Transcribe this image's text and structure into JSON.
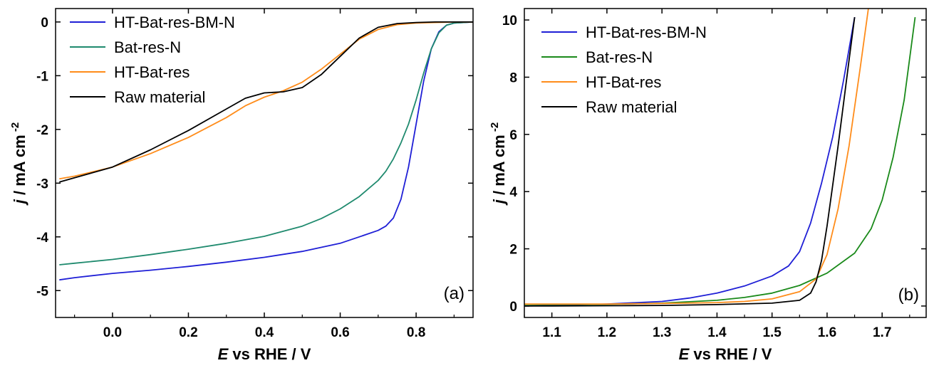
{
  "chart_data": [
    {
      "type": "line",
      "panel_label": "(a)",
      "xlabel_italic": "E",
      "xlabel_rest": " vs RHE / V",
      "ylabel_italic": "j",
      "ylabel_rest": " / mA cm",
      "ylabel_sup": "-2",
      "xlim": [
        -0.15,
        0.95
      ],
      "ylim": [
        -5.5,
        0.25
      ],
      "xticks": [
        0.0,
        0.2,
        0.4,
        0.6,
        0.8
      ],
      "xtick_labels": [
        "0.0",
        "0.2",
        "0.4",
        "0.6",
        "0.8"
      ],
      "yticks": [
        0,
        -1,
        -2,
        -3,
        -4,
        -5
      ],
      "ytick_labels": [
        "0",
        "-1",
        "-2",
        "-3",
        "-4",
        "-5"
      ],
      "legend_position": "top-left",
      "series": [
        {
          "name": "HT-Bat-res-BM-N",
          "color": "#1f1fd6",
          "x": [
            -0.14,
            -0.1,
            0.0,
            0.1,
            0.2,
            0.3,
            0.4,
            0.5,
            0.6,
            0.65,
            0.7,
            0.72,
            0.74,
            0.76,
            0.78,
            0.8,
            0.82,
            0.84,
            0.86,
            0.88,
            0.9,
            0.95
          ],
          "y": [
            -4.8,
            -4.76,
            -4.68,
            -4.62,
            -4.55,
            -4.47,
            -4.38,
            -4.27,
            -4.12,
            -4.0,
            -3.88,
            -3.8,
            -3.65,
            -3.3,
            -2.7,
            -1.9,
            -1.1,
            -0.5,
            -0.18,
            -0.06,
            -0.02,
            0.0
          ]
        },
        {
          "name": "Bat-res-N",
          "color": "#1f8a6e",
          "x": [
            -0.14,
            -0.1,
            0.0,
            0.1,
            0.2,
            0.3,
            0.4,
            0.5,
            0.55,
            0.6,
            0.65,
            0.7,
            0.72,
            0.74,
            0.76,
            0.78,
            0.8,
            0.82,
            0.84,
            0.86,
            0.88,
            0.9,
            0.95
          ],
          "y": [
            -4.52,
            -4.49,
            -4.42,
            -4.33,
            -4.23,
            -4.12,
            -3.99,
            -3.8,
            -3.66,
            -3.48,
            -3.25,
            -2.95,
            -2.78,
            -2.55,
            -2.25,
            -1.9,
            -1.45,
            -0.95,
            -0.5,
            -0.2,
            -0.06,
            -0.02,
            0.0
          ]
        },
        {
          "name": "HT-Bat-res",
          "color": "#ff8c1a",
          "x": [
            -0.14,
            -0.1,
            0.0,
            0.1,
            0.2,
            0.3,
            0.35,
            0.4,
            0.45,
            0.5,
            0.55,
            0.6,
            0.65,
            0.7,
            0.75,
            0.8,
            0.85,
            0.9,
            0.95
          ],
          "y": [
            -2.92,
            -2.87,
            -2.7,
            -2.45,
            -2.15,
            -1.78,
            -1.56,
            -1.4,
            -1.28,
            -1.12,
            -0.88,
            -0.6,
            -0.32,
            -0.14,
            -0.05,
            -0.02,
            -0.01,
            0.0,
            0.0
          ]
        },
        {
          "name": "Raw material",
          "color": "#000000",
          "x": [
            -0.14,
            -0.1,
            0.0,
            0.1,
            0.2,
            0.3,
            0.35,
            0.4,
            0.45,
            0.5,
            0.55,
            0.6,
            0.65,
            0.7,
            0.75,
            0.8,
            0.85,
            0.9,
            0.95
          ],
          "y": [
            -2.98,
            -2.9,
            -2.7,
            -2.38,
            -2.02,
            -1.62,
            -1.42,
            -1.32,
            -1.3,
            -1.22,
            -0.98,
            -0.64,
            -0.3,
            -0.1,
            -0.03,
            -0.01,
            0.0,
            0.0,
            0.0
          ]
        }
      ]
    },
    {
      "type": "line",
      "panel_label": "(b)",
      "xlabel_italic": "E",
      "xlabel_rest": " vs RHE / V",
      "ylabel_italic": "j",
      "ylabel_rest": " / mA cm",
      "ylabel_sup": "-2",
      "xlim": [
        1.05,
        1.78
      ],
      "ylim": [
        -0.4,
        10.4
      ],
      "xticks": [
        1.1,
        1.2,
        1.3,
        1.4,
        1.5,
        1.6,
        1.7
      ],
      "xtick_labels": [
        "1.1",
        "1.2",
        "1.3",
        "1.4",
        "1.5",
        "1.6",
        "1.7"
      ],
      "yticks": [
        0,
        2,
        4,
        6,
        8,
        10
      ],
      "ytick_labels": [
        "0",
        "2",
        "4",
        "6",
        "8",
        "10"
      ],
      "legend_position": "top-left",
      "series": [
        {
          "name": "HT-Bat-res-BM-N",
          "color": "#1f1fd6",
          "x": [
            1.05,
            1.1,
            1.2,
            1.3,
            1.35,
            1.4,
            1.45,
            1.5,
            1.53,
            1.55,
            1.57,
            1.59,
            1.61,
            1.63,
            1.65
          ],
          "y": [
            0.0,
            0.02,
            0.07,
            0.16,
            0.28,
            0.45,
            0.7,
            1.05,
            1.4,
            1.9,
            2.9,
            4.3,
            5.9,
            7.9,
            10.1
          ]
        },
        {
          "name": "Bat-res-N",
          "color": "#1a8a1a",
          "x": [
            1.05,
            1.1,
            1.2,
            1.3,
            1.4,
            1.45,
            1.5,
            1.55,
            1.6,
            1.65,
            1.68,
            1.7,
            1.72,
            1.74,
            1.76
          ],
          "y": [
            0.05,
            0.05,
            0.06,
            0.1,
            0.2,
            0.3,
            0.45,
            0.72,
            1.15,
            1.85,
            2.7,
            3.7,
            5.2,
            7.2,
            10.1
          ]
        },
        {
          "name": "HT-Bat-res",
          "color": "#ff8c1a",
          "x": [
            1.05,
            1.1,
            1.2,
            1.3,
            1.4,
            1.45,
            1.5,
            1.55,
            1.58,
            1.6,
            1.62,
            1.64,
            1.66,
            1.675
          ],
          "y": [
            0.07,
            0.07,
            0.07,
            0.09,
            0.12,
            0.16,
            0.25,
            0.5,
            0.95,
            1.8,
            3.4,
            5.6,
            8.3,
            10.4
          ]
        },
        {
          "name": "Raw material",
          "color": "#000000",
          "x": [
            1.05,
            1.1,
            1.2,
            1.3,
            1.4,
            1.5,
            1.55,
            1.57,
            1.58,
            1.59,
            1.6,
            1.61,
            1.62,
            1.63,
            1.64,
            1.65
          ],
          "y": [
            0.0,
            0.0,
            0.01,
            0.02,
            0.05,
            0.1,
            0.2,
            0.45,
            0.85,
            1.6,
            2.8,
            4.2,
            5.6,
            7.1,
            8.6,
            10.1
          ]
        }
      ]
    }
  ]
}
